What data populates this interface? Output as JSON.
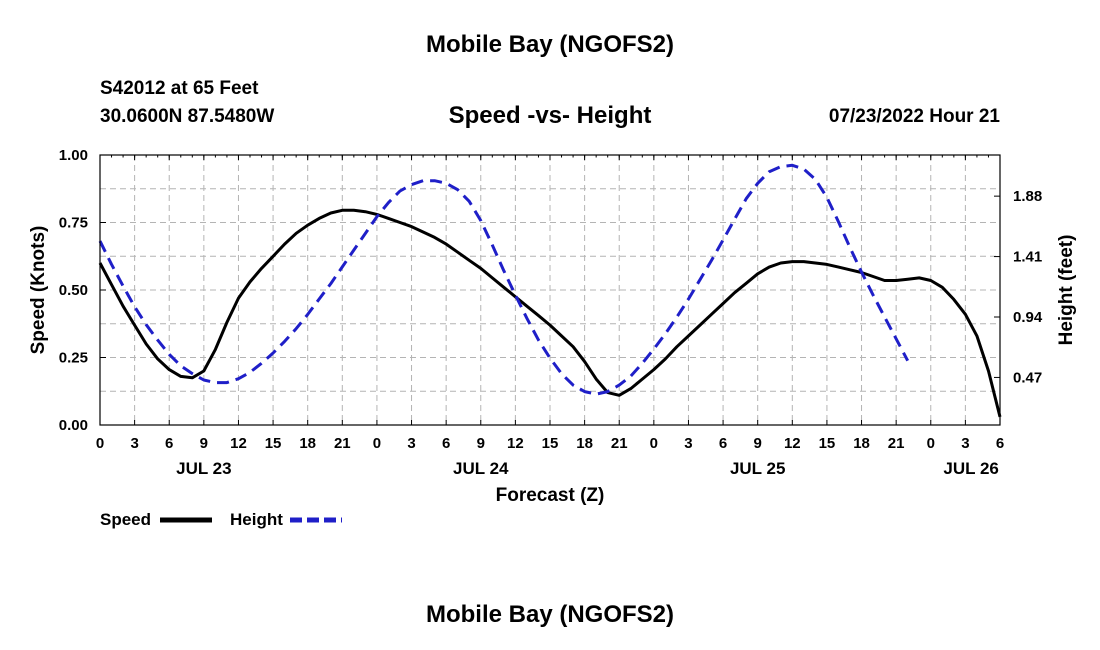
{
  "page": {
    "title": "Mobile Bay (NGOFS2)",
    "title_bottom": "Mobile Bay (NGOFS2)",
    "station": "S42012 at 65 Feet",
    "coords": "30.0600N  87.5480W",
    "run_time": "07/23/2022 Hour 21"
  },
  "chart_data": {
    "type": "line",
    "title": "Speed -vs- Height",
    "xlabel": "Forecast (Z)",
    "ylabel": "Speed (Knots)",
    "y2label": "Height (feet)",
    "x_unit": "hours since 2022-07-23 00Z",
    "xlim": [
      0,
      78
    ],
    "ylim": [
      0,
      1.0
    ],
    "y2lim": [
      0.1,
      2.2
    ],
    "x_ticks": [
      0,
      3,
      6,
      9,
      12,
      15,
      18,
      21,
      24,
      27,
      30,
      33,
      36,
      39,
      42,
      45,
      48,
      51,
      54,
      57,
      60,
      63,
      66,
      69,
      72,
      75,
      78
    ],
    "x_tick_labels": [
      "0",
      "3",
      "6",
      "9",
      "12",
      "15",
      "18",
      "21",
      "0",
      "3",
      "6",
      "9",
      "12",
      "15",
      "18",
      "21",
      "0",
      "3",
      "6",
      "9",
      "12",
      "15",
      "18",
      "21",
      "0",
      "3",
      "6"
    ],
    "y_ticks": [
      0,
      0.25,
      0.5,
      0.75,
      1.0
    ],
    "y_tick_labels": [
      "0.00",
      "0.25",
      "0.50",
      "0.75",
      "1.00"
    ],
    "y2_ticks": [
      0.47,
      0.94,
      1.41,
      1.88
    ],
    "y2_tick_labels": [
      "0.47",
      "0.94",
      "1.41",
      "1.88"
    ],
    "day_labels": [
      {
        "x": 9,
        "label": "JUL 23"
      },
      {
        "x": 33,
        "label": "JUL 24"
      },
      {
        "x": 57,
        "label": "JUL 25"
      },
      {
        "x": 75.5,
        "label": "JUL 26"
      }
    ],
    "grid": true,
    "series": [
      {
        "name": "Speed",
        "axis": "left",
        "color": "#000000",
        "style": "solid",
        "points": [
          [
            0,
            0.6
          ],
          [
            1,
            0.52
          ],
          [
            2,
            0.44
          ],
          [
            3,
            0.37
          ],
          [
            4,
            0.3
          ],
          [
            5,
            0.245
          ],
          [
            6,
            0.205
          ],
          [
            7,
            0.18
          ],
          [
            8,
            0.175
          ],
          [
            9,
            0.2
          ],
          [
            10,
            0.28
          ],
          [
            11,
            0.38
          ],
          [
            12,
            0.47
          ],
          [
            13,
            0.53
          ],
          [
            14,
            0.58
          ],
          [
            15,
            0.625
          ],
          [
            16,
            0.67
          ],
          [
            17,
            0.71
          ],
          [
            18,
            0.74
          ],
          [
            19,
            0.765
          ],
          [
            20,
            0.785
          ],
          [
            21,
            0.795
          ],
          [
            22,
            0.795
          ],
          [
            23,
            0.79
          ],
          [
            24,
            0.78
          ],
          [
            25,
            0.765
          ],
          [
            26,
            0.75
          ],
          [
            27,
            0.735
          ],
          [
            28,
            0.715
          ],
          [
            29,
            0.695
          ],
          [
            30,
            0.67
          ],
          [
            31,
            0.64
          ],
          [
            32,
            0.61
          ],
          [
            33,
            0.58
          ],
          [
            34,
            0.545
          ],
          [
            35,
            0.51
          ],
          [
            36,
            0.475
          ],
          [
            37,
            0.44
          ],
          [
            38,
            0.405
          ],
          [
            39,
            0.37
          ],
          [
            40,
            0.33
          ],
          [
            41,
            0.29
          ],
          [
            42,
            0.235
          ],
          [
            43,
            0.17
          ],
          [
            44,
            0.12
          ],
          [
            45,
            0.11
          ],
          [
            46,
            0.135
          ],
          [
            47,
            0.17
          ],
          [
            48,
            0.205
          ],
          [
            49,
            0.245
          ],
          [
            50,
            0.29
          ],
          [
            51,
            0.33
          ],
          [
            52,
            0.37
          ],
          [
            53,
            0.41
          ],
          [
            54,
            0.45
          ],
          [
            55,
            0.49
          ],
          [
            56,
            0.525
          ],
          [
            57,
            0.56
          ],
          [
            58,
            0.585
          ],
          [
            59,
            0.6
          ],
          [
            60,
            0.605
          ],
          [
            61,
            0.605
          ],
          [
            62,
            0.6
          ],
          [
            63,
            0.595
          ],
          [
            64,
            0.585
          ],
          [
            65,
            0.575
          ],
          [
            66,
            0.565
          ],
          [
            67,
            0.55
          ],
          [
            68,
            0.535
          ],
          [
            69,
            0.535
          ],
          [
            70,
            0.54
          ],
          [
            71,
            0.545
          ],
          [
            72,
            0.535
          ],
          [
            73,
            0.51
          ],
          [
            74,
            0.465
          ],
          [
            75,
            0.41
          ],
          [
            76,
            0.33
          ],
          [
            77,
            0.2
          ],
          [
            78,
            0.03
          ]
        ]
      },
      {
        "name": "Height",
        "axis": "right",
        "color": "#1f1fc8",
        "style": "dashed",
        "points": [
          [
            0,
            1.53
          ],
          [
            1,
            1.35
          ],
          [
            2,
            1.18
          ],
          [
            3,
            1.02
          ],
          [
            4,
            0.88
          ],
          [
            5,
            0.76
          ],
          [
            6,
            0.65
          ],
          [
            7,
            0.56
          ],
          [
            8,
            0.5
          ],
          [
            9,
            0.45
          ],
          [
            10,
            0.43
          ],
          [
            11,
            0.43
          ],
          [
            12,
            0.46
          ],
          [
            13,
            0.51
          ],
          [
            14,
            0.58
          ],
          [
            15,
            0.66
          ],
          [
            16,
            0.75
          ],
          [
            17,
            0.85
          ],
          [
            18,
            0.96
          ],
          [
            19,
            1.08
          ],
          [
            20,
            1.2
          ],
          [
            21,
            1.33
          ],
          [
            22,
            1.46
          ],
          [
            23,
            1.59
          ],
          [
            24,
            1.72
          ],
          [
            25,
            1.83
          ],
          [
            26,
            1.92
          ],
          [
            27,
            1.97
          ],
          [
            28,
            2.0
          ],
          [
            29,
            2.0
          ],
          [
            30,
            1.98
          ],
          [
            31,
            1.93
          ],
          [
            32,
            1.84
          ],
          [
            33,
            1.69
          ],
          [
            34,
            1.5
          ],
          [
            35,
            1.3
          ],
          [
            36,
            1.11
          ],
          [
            37,
            0.93
          ],
          [
            38,
            0.76
          ],
          [
            39,
            0.62
          ],
          [
            40,
            0.5
          ],
          [
            41,
            0.41
          ],
          [
            42,
            0.36
          ],
          [
            43,
            0.34
          ],
          [
            44,
            0.36
          ],
          [
            45,
            0.41
          ],
          [
            46,
            0.48
          ],
          [
            47,
            0.58
          ],
          [
            48,
            0.69
          ],
          [
            49,
            0.81
          ],
          [
            50,
            0.94
          ],
          [
            51,
            1.08
          ],
          [
            52,
            1.23
          ],
          [
            53,
            1.38
          ],
          [
            54,
            1.54
          ],
          [
            55,
            1.7
          ],
          [
            56,
            1.86
          ],
          [
            57,
            1.98
          ],
          [
            58,
            2.07
          ],
          [
            59,
            2.11
          ],
          [
            60,
            2.12
          ],
          [
            61,
            2.09
          ],
          [
            62,
            2.01
          ],
          [
            63,
            1.87
          ],
          [
            64,
            1.68
          ],
          [
            65,
            1.48
          ],
          [
            66,
            1.29
          ],
          [
            67,
            1.11
          ],
          [
            68,
            0.94
          ],
          [
            69,
            0.77
          ],
          [
            70,
            0.6
          ]
        ]
      }
    ],
    "legend": {
      "placement": "bottom-left",
      "items": [
        {
          "label": "Speed",
          "color": "#000000",
          "style": "solid"
        },
        {
          "label": "Height",
          "color": "#1f1fc8",
          "style": "dashed"
        }
      ]
    }
  }
}
